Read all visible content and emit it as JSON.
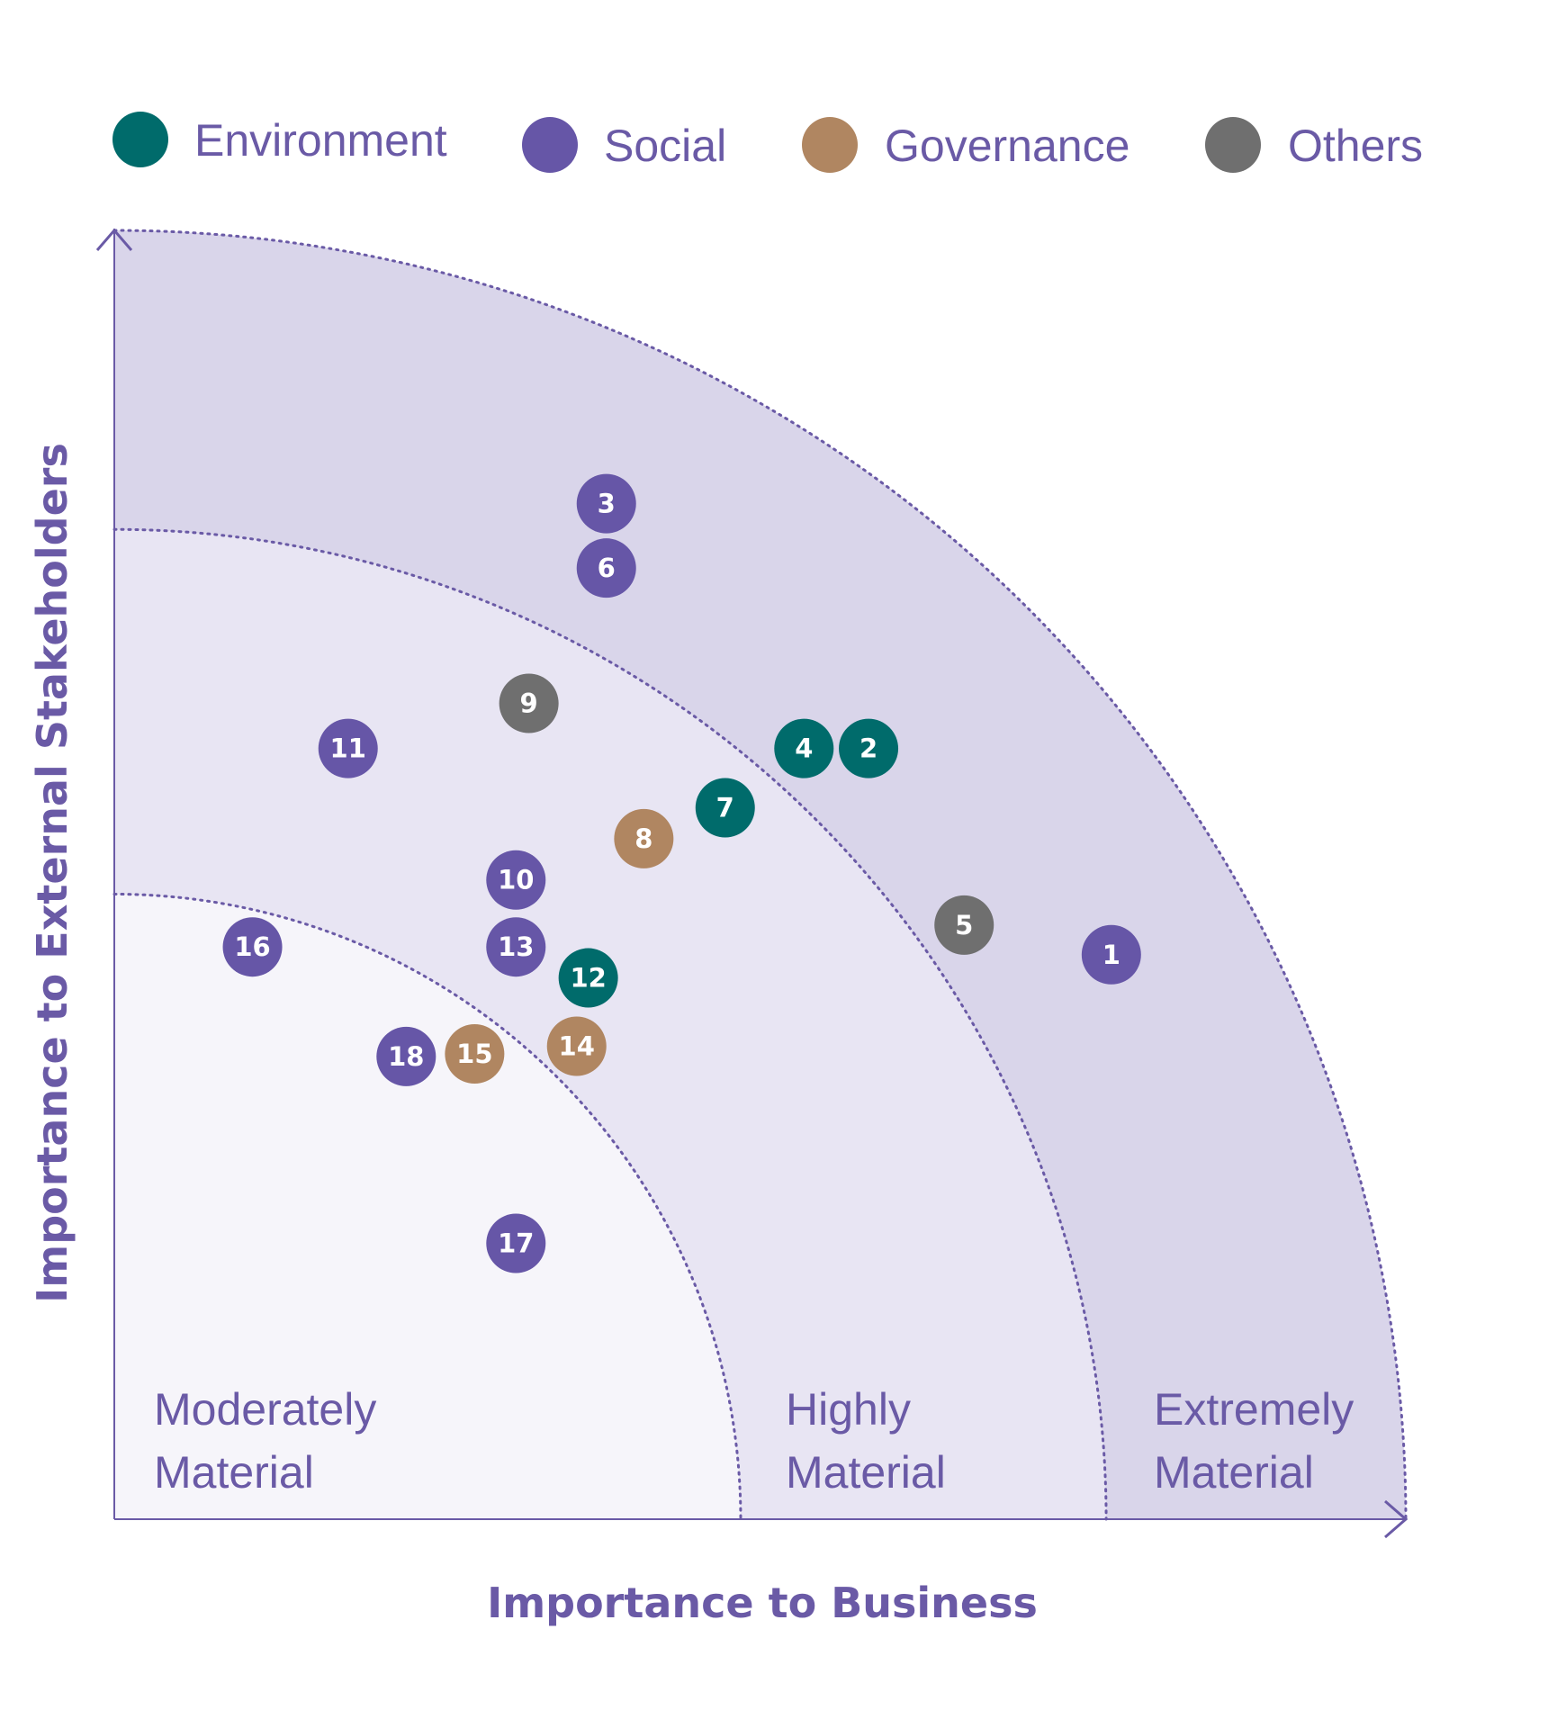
{
  "chart_data": {
    "type": "scatter",
    "title": "",
    "xlabel": "Importance to Business",
    "ylabel": "Importance to External Stakeholders",
    "xlim": [
      0,
      100
    ],
    "ylim": [
      0,
      100
    ],
    "grid": false,
    "legend_position": "top",
    "categories": [
      {
        "key": "environment",
        "name": "Environment",
        "color": "#006b6b"
      },
      {
        "key": "social",
        "name": "Social",
        "color": "#6656a7"
      },
      {
        "key": "governance",
        "name": "Governance",
        "color": "#b08661"
      },
      {
        "key": "others",
        "name": "Others",
        "color": "#6f6f6f"
      }
    ],
    "zones": [
      {
        "name": "moderately",
        "line1": "Moderately",
        "line2": "Material",
        "radius": 48.5
      },
      {
        "name": "highly",
        "line1": "Highly",
        "line2": "Material",
        "radius": 76.8
      },
      {
        "name": "extremely",
        "line1": "Extremely",
        "line2": "Material",
        "radius": 100
      }
    ],
    "points": [
      {
        "label": "1",
        "category": "social",
        "x": 77.2,
        "y": 43.8
      },
      {
        "label": "2",
        "category": "environment",
        "x": 58.4,
        "y": 59.8
      },
      {
        "label": "3",
        "category": "social",
        "x": 38.1,
        "y": 78.8
      },
      {
        "label": "4",
        "category": "environment",
        "x": 53.4,
        "y": 59.8
      },
      {
        "label": "5",
        "category": "others",
        "x": 65.8,
        "y": 46.1
      },
      {
        "label": "6",
        "category": "social",
        "x": 38.1,
        "y": 73.8
      },
      {
        "label": "7",
        "category": "environment",
        "x": 47.3,
        "y": 55.2
      },
      {
        "label": "8",
        "category": "governance",
        "x": 41.0,
        "y": 52.8
      },
      {
        "label": "9",
        "category": "others",
        "x": 32.1,
        "y": 63.3
      },
      {
        "label": "10",
        "category": "social",
        "x": 31.1,
        "y": 49.6
      },
      {
        "label": "11",
        "category": "social",
        "x": 18.1,
        "y": 59.8
      },
      {
        "label": "12",
        "category": "environment",
        "x": 36.7,
        "y": 42.0
      },
      {
        "label": "13",
        "category": "social",
        "x": 31.1,
        "y": 44.4
      },
      {
        "label": "14",
        "category": "governance",
        "x": 35.8,
        "y": 36.7
      },
      {
        "label": "15",
        "category": "governance",
        "x": 27.9,
        "y": 36.1
      },
      {
        "label": "16",
        "category": "social",
        "x": 10.7,
        "y": 44.4
      },
      {
        "label": "17",
        "category": "social",
        "x": 31.1,
        "y": 21.4
      },
      {
        "label": "18",
        "category": "social",
        "x": 22.6,
        "y": 35.9
      }
    ]
  },
  "colors": {
    "axis": "#6a5aa6",
    "zone_outer": "#d9d5ea",
    "zone_middle": "#e8e5f3",
    "zone_inner": "#f6f5fa"
  }
}
